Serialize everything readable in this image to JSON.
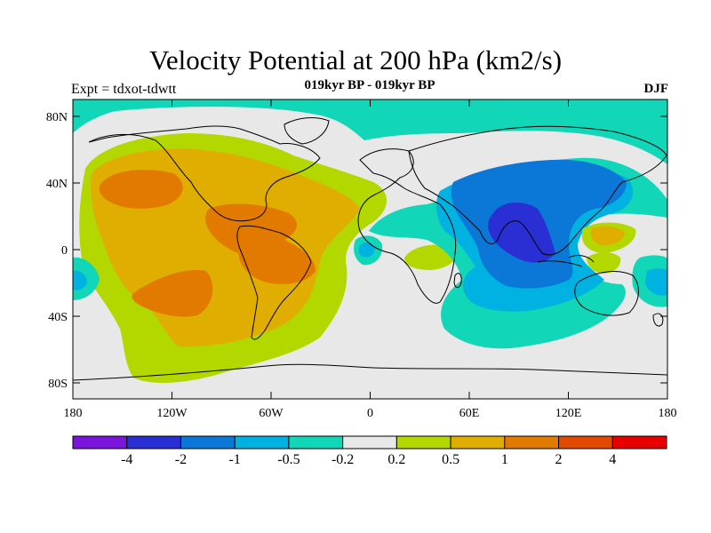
{
  "title": "Velocity Potential at 200 hPa (km2/s)",
  "subtitle": "019kyr BP - 019kyr BP",
  "left_label": "Expt = tdxot-tdwtt",
  "right_label": "DJF",
  "axes": {
    "x_ticks": [
      "180",
      "120W",
      "60W",
      "0",
      "60E",
      "120E",
      "180"
    ],
    "y_ticks": [
      "80N",
      "40N",
      "0",
      "40S",
      "80S"
    ]
  },
  "colorbar": {
    "colors": [
      "#7b15dc",
      "#2a2fd4",
      "#0b78d8",
      "#00b2e2",
      "#12d6b8",
      "#e8e8e8",
      "#b2d800",
      "#dfae00",
      "#e27a00",
      "#e24a00",
      "#e80000"
    ],
    "labels": [
      "-4",
      "-2",
      "-1",
      "-0.5",
      "-0.2",
      "0.2",
      "0.5",
      "1",
      "2",
      "4"
    ]
  }
}
